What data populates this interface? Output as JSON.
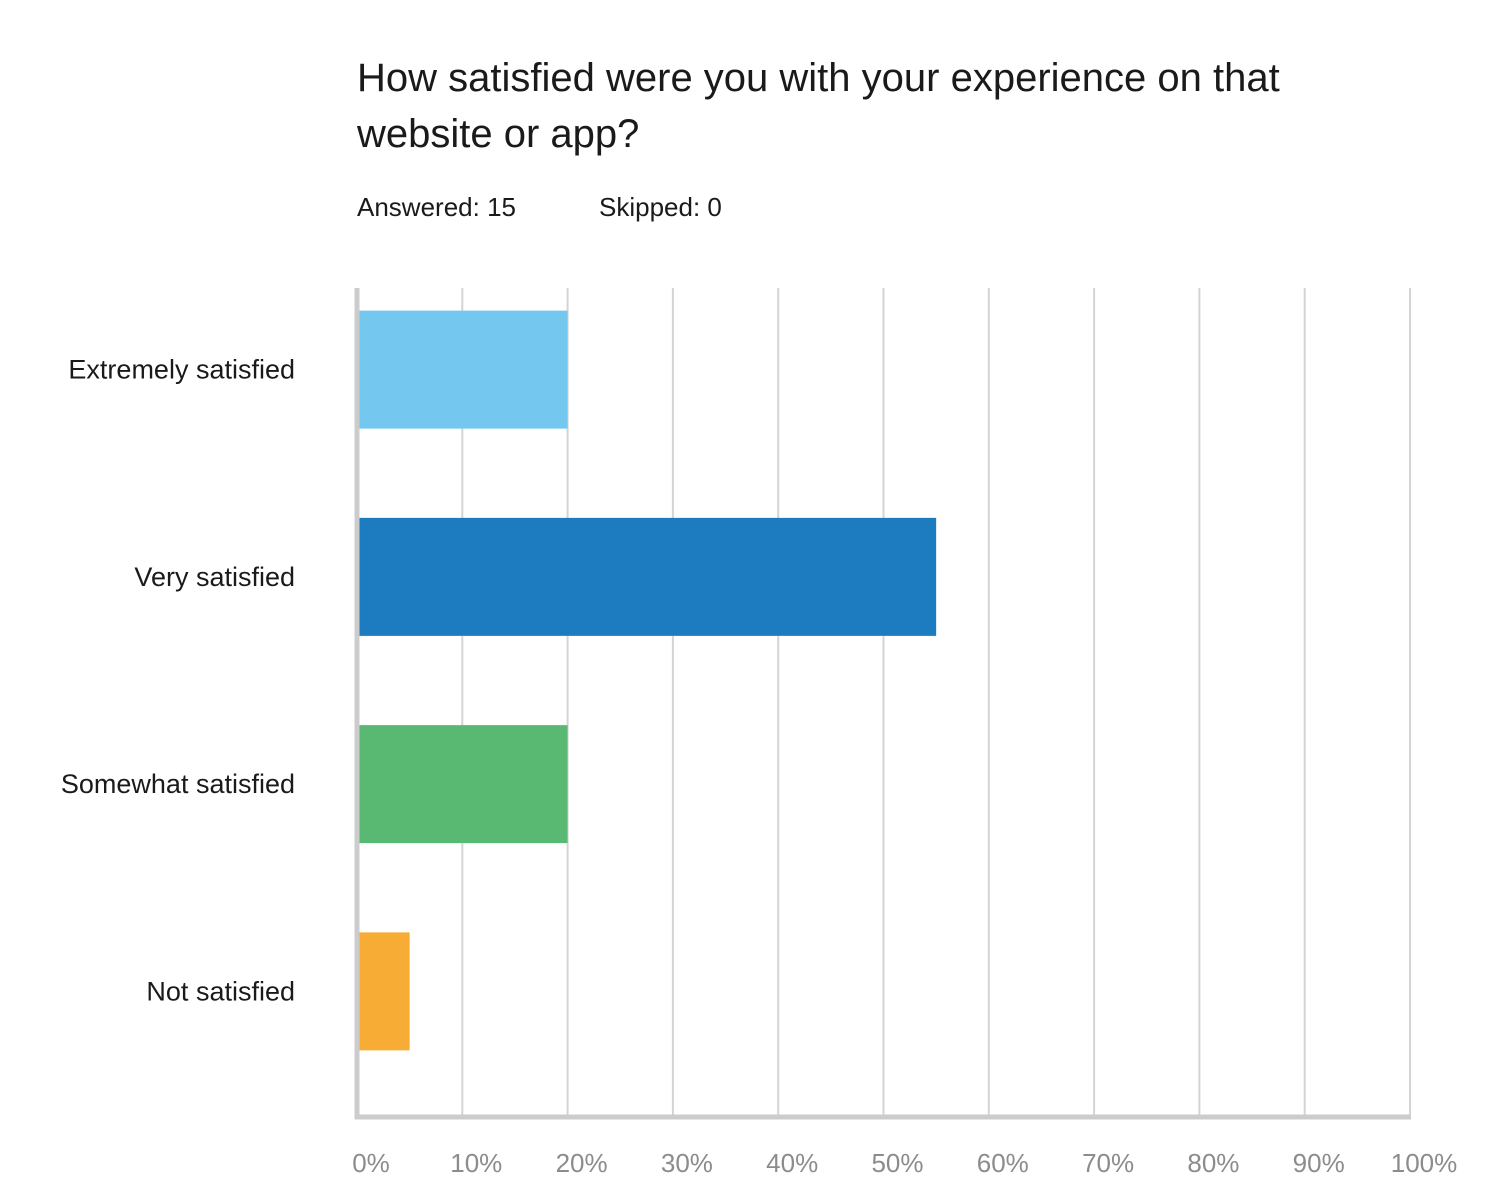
{
  "question": {
    "title": "How satisfied were you with your experience on that website or app?",
    "answered": "Answered: 15",
    "skipped": "Skipped: 0"
  },
  "chart_data": {
    "type": "bar",
    "orientation": "horizontal",
    "categories": [
      "Extremely satisfied",
      "Very satisfied",
      "Somewhat satisfied",
      "Not satisfied"
    ],
    "values": [
      20,
      55,
      20,
      5
    ],
    "unit": "%",
    "xlim": [
      0,
      100
    ],
    "x_ticks": [
      "0%",
      "10%",
      "20%",
      "30%",
      "40%",
      "50%",
      "60%",
      "70%",
      "80%",
      "90%",
      "100%"
    ],
    "colors": [
      "#74c7ef",
      "#1c7cbf",
      "#59b973",
      "#f7ad35"
    ],
    "grid": true,
    "gridline_color": "#d4d4d4",
    "axis_color": "#cccccc"
  }
}
